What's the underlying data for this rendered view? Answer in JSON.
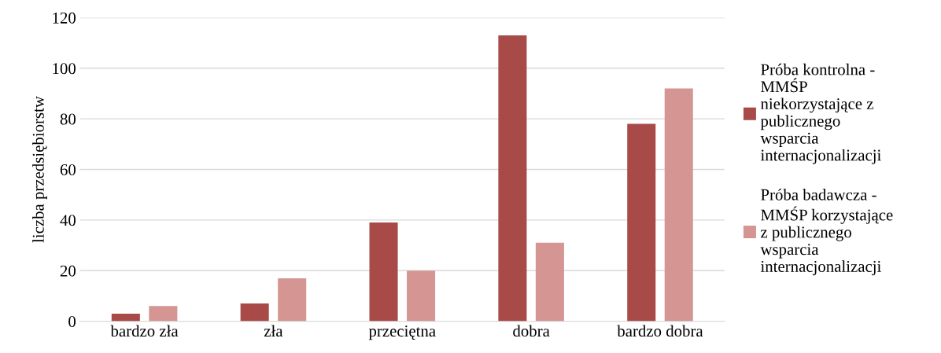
{
  "chart_data": {
    "type": "bar",
    "ylabel": "liczba przedsiębiorstw",
    "categories": [
      "bardzo zła",
      "zła",
      "przeciętna",
      "dobra",
      "bardzo dobra"
    ],
    "series": [
      {
        "name": "Próba kontrolna - MMŚP niekorzystające z publicznego wsparcia internacjonalizacji",
        "color": "#a84a47",
        "values": [
          3,
          7,
          39,
          113,
          78
        ]
      },
      {
        "name": "Próba badawcza - MMŚP korzystające z publicznego wsparcia internacjonalizacji",
        "color": "#d49593",
        "values": [
          6,
          17,
          20,
          31,
          92
        ]
      }
    ],
    "ylim": [
      0,
      120
    ],
    "yticks": [
      0,
      20,
      40,
      60,
      80,
      100,
      120
    ],
    "grid": "y",
    "legend": "right"
  }
}
